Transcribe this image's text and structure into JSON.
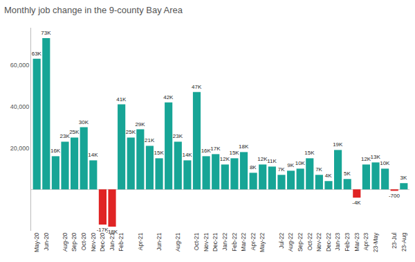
{
  "chart_data": {
    "type": "bar",
    "title": "Monthly job change in the 9-county Bay Area",
    "categories": [
      "May-20",
      "Jun-20",
      null,
      "Aug-20",
      "Sep-20",
      "Oct-20",
      "Nov-20",
      "Dec-20",
      "Jan-21",
      "Feb-21",
      null,
      "Apr-21",
      null,
      "Jun-21",
      null,
      "Aug-21",
      null,
      "Oct-21",
      "Nov-21",
      "Dec-21",
      "Jan-22",
      "Feb-22",
      "Mar-22",
      "Apr-22",
      "May-22",
      null,
      "Jul-22",
      "Aug-22",
      "Sep-22",
      "Oct-22",
      "Nov-22",
      "Dec-22",
      "Jan-23",
      "Feb-23",
      "Mar-23",
      "Apr-23",
      "23-May",
      null,
      "23-Jul",
      "23-Aug"
    ],
    "values": [
      63000,
      73000,
      16000,
      23000,
      25000,
      30000,
      14000,
      -17000,
      -18000,
      41000,
      25000,
      29000,
      21000,
      15000,
      42000,
      23000,
      14000,
      47000,
      16000,
      17000,
      12000,
      15000,
      18000,
      8000,
      12000,
      11000,
      7000,
      9000,
      10000,
      15000,
      7000,
      4000,
      19000,
      5000,
      -4000,
      12000,
      13000,
      10000,
      -700,
      3000
    ],
    "value_labels": [
      "63K",
      "73K",
      "16K",
      "23K",
      "25K",
      "30K",
      "14K",
      "-17K",
      "-18K",
      "41K",
      "25K",
      "29K",
      "21K",
      "15K",
      "42K",
      "23K",
      "14K",
      "47K",
      "16K",
      "17K",
      "12K",
      "15K",
      "18K",
      "8K",
      "12K",
      "11K",
      "7K",
      "9K",
      "10K",
      "15K",
      "7K",
      "4K",
      "19K",
      "5K",
      "-4K",
      "12K",
      "13K",
      "10K",
      "-700",
      "3K"
    ],
    "colors": [
      "#17a596",
      "#17a596",
      "#17a596",
      "#17a596",
      "#17a596",
      "#17a596",
      "#17a596",
      "#e02424",
      "#e02424",
      "#17a596",
      "#17a596",
      "#17a596",
      "#17a596",
      "#17a596",
      "#17a596",
      "#17a596",
      "#17a596",
      "#17a596",
      "#17a596",
      "#17a596",
      "#17a596",
      "#17a596",
      "#17a596",
      "#17a596",
      "#17a596",
      "#17a596",
      "#17a596",
      "#17a596",
      "#17a596",
      "#17a596",
      "#17a596",
      "#17a596",
      "#17a596",
      "#17a596",
      "#e02424",
      "#17a596",
      "#17a596",
      "#17a596",
      "#e02424",
      "#17a596"
    ],
    "ylim": [
      -20000,
      78000
    ],
    "yticks": [
      {
        "value": 20000,
        "label": "20,000"
      },
      {
        "value": 40000,
        "label": "40,000"
      },
      {
        "value": 60000,
        "label": "60,000"
      }
    ],
    "grid": false,
    "data_labels": true
  }
}
